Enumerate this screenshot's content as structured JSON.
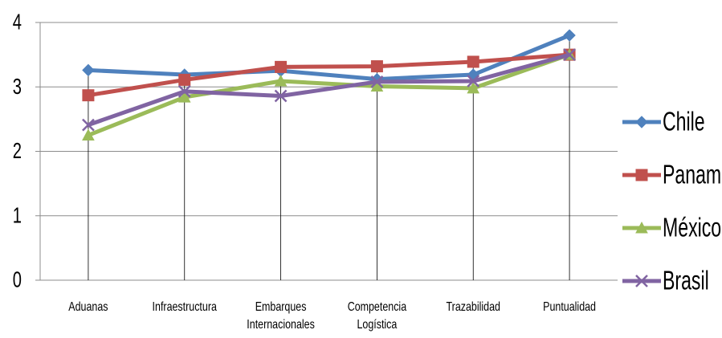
{
  "chart_data": {
    "type": "line",
    "title": "",
    "xlabel": "",
    "ylabel": "",
    "ylim": [
      0,
      4
    ],
    "yticks": [
      0,
      1,
      2,
      3,
      4
    ],
    "grid": true,
    "legend_position": "right",
    "categories": [
      [
        "Aduanas"
      ],
      [
        "Infraestructura"
      ],
      [
        "Embarques",
        "Internacionales"
      ],
      [
        "Competencia",
        "Logística"
      ],
      [
        "Trazabilidad"
      ],
      [
        "Puntualidad"
      ]
    ],
    "series": [
      {
        "name": "Chile",
        "color": "#4F81BD",
        "marker": "diamond",
        "values": [
          3.26,
          3.19,
          3.25,
          3.12,
          3.19,
          3.8
        ]
      },
      {
        "name": "Panamá",
        "color": "#C0504D",
        "marker": "square",
        "values": [
          2.87,
          3.11,
          3.31,
          3.32,
          3.39,
          3.5
        ]
      },
      {
        "name": "México",
        "color": "#9BBB59",
        "marker": "triangle",
        "values": [
          2.25,
          2.84,
          3.09,
          3.01,
          2.98,
          3.5
        ]
      },
      {
        "name": "Brasil",
        "color": "#8064A2",
        "marker": "x",
        "values": [
          2.41,
          2.93,
          2.86,
          3.08,
          3.09,
          3.5
        ]
      }
    ]
  }
}
